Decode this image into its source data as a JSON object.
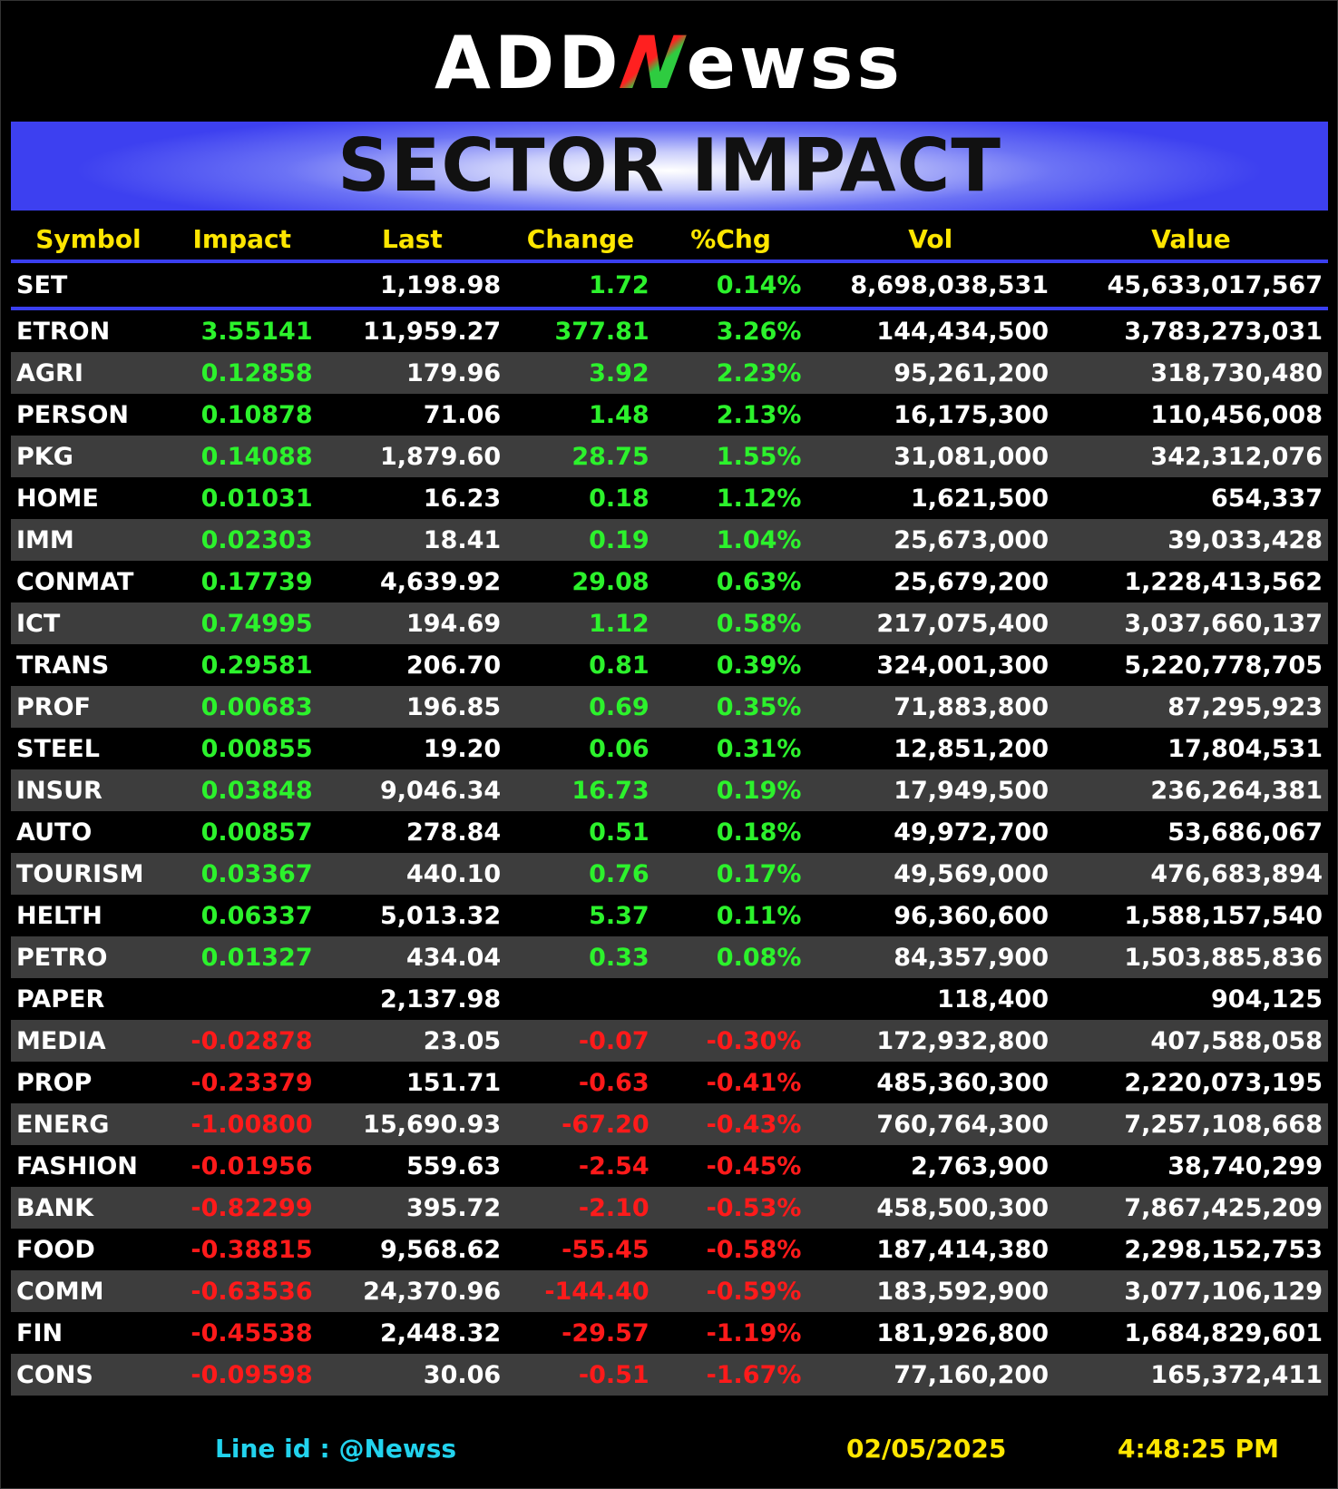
{
  "logo": {
    "part1": "ADD",
    "accent": "N",
    "part2": "ewss"
  },
  "banner": {
    "title": "SECTOR IMPACT"
  },
  "table": {
    "headers": [
      "Symbol",
      "Impact",
      "Last",
      "Change",
      "%Chg",
      "Vol",
      "Value"
    ],
    "market": {
      "symbol": "SET",
      "impact": "",
      "last": "1,198.98",
      "change": "1.72",
      "pct": "0.14%",
      "vol": "8,698,038,531",
      "value": "45,633,017,567",
      "dir": "pos"
    },
    "rows": [
      {
        "symbol": "ETRON",
        "impact": "3.55141",
        "last": "11,959.27",
        "change": "377.81",
        "pct": "3.26%",
        "vol": "144,434,500",
        "value": "3,783,273,031",
        "dir": "pos"
      },
      {
        "symbol": "AGRI",
        "impact": "0.12858",
        "last": "179.96",
        "change": "3.92",
        "pct": "2.23%",
        "vol": "95,261,200",
        "value": "318,730,480",
        "dir": "pos"
      },
      {
        "symbol": "PERSON",
        "impact": "0.10878",
        "last": "71.06",
        "change": "1.48",
        "pct": "2.13%",
        "vol": "16,175,300",
        "value": "110,456,008",
        "dir": "pos"
      },
      {
        "symbol": "PKG",
        "impact": "0.14088",
        "last": "1,879.60",
        "change": "28.75",
        "pct": "1.55%",
        "vol": "31,081,000",
        "value": "342,312,076",
        "dir": "pos"
      },
      {
        "symbol": "HOME",
        "impact": "0.01031",
        "last": "16.23",
        "change": "0.18",
        "pct": "1.12%",
        "vol": "1,621,500",
        "value": "654,337",
        "dir": "pos"
      },
      {
        "symbol": "IMM",
        "impact": "0.02303",
        "last": "18.41",
        "change": "0.19",
        "pct": "1.04%",
        "vol": "25,673,000",
        "value": "39,033,428",
        "dir": "pos"
      },
      {
        "symbol": "CONMAT",
        "impact": "0.17739",
        "last": "4,639.92",
        "change": "29.08",
        "pct": "0.63%",
        "vol": "25,679,200",
        "value": "1,228,413,562",
        "dir": "pos"
      },
      {
        "symbol": "ICT",
        "impact": "0.74995",
        "last": "194.69",
        "change": "1.12",
        "pct": "0.58%",
        "vol": "217,075,400",
        "value": "3,037,660,137",
        "dir": "pos"
      },
      {
        "symbol": "TRANS",
        "impact": "0.29581",
        "last": "206.70",
        "change": "0.81",
        "pct": "0.39%",
        "vol": "324,001,300",
        "value": "5,220,778,705",
        "dir": "pos"
      },
      {
        "symbol": "PROF",
        "impact": "0.00683",
        "last": "196.85",
        "change": "0.69",
        "pct": "0.35%",
        "vol": "71,883,800",
        "value": "87,295,923",
        "dir": "pos"
      },
      {
        "symbol": "STEEL",
        "impact": "0.00855",
        "last": "19.20",
        "change": "0.06",
        "pct": "0.31%",
        "vol": "12,851,200",
        "value": "17,804,531",
        "dir": "pos"
      },
      {
        "symbol": "INSUR",
        "impact": "0.03848",
        "last": "9,046.34",
        "change": "16.73",
        "pct": "0.19%",
        "vol": "17,949,500",
        "value": "236,264,381",
        "dir": "pos"
      },
      {
        "symbol": "AUTO",
        "impact": "0.00857",
        "last": "278.84",
        "change": "0.51",
        "pct": "0.18%",
        "vol": "49,972,700",
        "value": "53,686,067",
        "dir": "pos"
      },
      {
        "symbol": "TOURISM",
        "impact": "0.03367",
        "last": "440.10",
        "change": "0.76",
        "pct": "0.17%",
        "vol": "49,569,000",
        "value": "476,683,894",
        "dir": "pos"
      },
      {
        "symbol": "HELTH",
        "impact": "0.06337",
        "last": "5,013.32",
        "change": "5.37",
        "pct": "0.11%",
        "vol": "96,360,600",
        "value": "1,588,157,540",
        "dir": "pos"
      },
      {
        "symbol": "PETRO",
        "impact": "0.01327",
        "last": "434.04",
        "change": "0.33",
        "pct": "0.08%",
        "vol": "84,357,900",
        "value": "1,503,885,836",
        "dir": "pos"
      },
      {
        "symbol": "PAPER",
        "impact": "",
        "last": "2,137.98",
        "change": "",
        "pct": "",
        "vol": "118,400",
        "value": "904,125",
        "dir": "neu"
      },
      {
        "symbol": "MEDIA",
        "impact": "-0.02878",
        "last": "23.05",
        "change": "-0.07",
        "pct": "-0.30%",
        "vol": "172,932,800",
        "value": "407,588,058",
        "dir": "neg"
      },
      {
        "symbol": "PROP",
        "impact": "-0.23379",
        "last": "151.71",
        "change": "-0.63",
        "pct": "-0.41%",
        "vol": "485,360,300",
        "value": "2,220,073,195",
        "dir": "neg"
      },
      {
        "symbol": "ENERG",
        "impact": "-1.00800",
        "last": "15,690.93",
        "change": "-67.20",
        "pct": "-0.43%",
        "vol": "760,764,300",
        "value": "7,257,108,668",
        "dir": "neg"
      },
      {
        "symbol": "FASHION",
        "impact": "-0.01956",
        "last": "559.63",
        "change": "-2.54",
        "pct": "-0.45%",
        "vol": "2,763,900",
        "value": "38,740,299",
        "dir": "neg"
      },
      {
        "symbol": "BANK",
        "impact": "-0.82299",
        "last": "395.72",
        "change": "-2.10",
        "pct": "-0.53%",
        "vol": "458,500,300",
        "value": "7,867,425,209",
        "dir": "neg"
      },
      {
        "symbol": "FOOD",
        "impact": "-0.38815",
        "last": "9,568.62",
        "change": "-55.45",
        "pct": "-0.58%",
        "vol": "187,414,380",
        "value": "2,298,152,753",
        "dir": "neg"
      },
      {
        "symbol": "COMM",
        "impact": "-0.63536",
        "last": "24,370.96",
        "change": "-144.40",
        "pct": "-0.59%",
        "vol": "183,592,900",
        "value": "3,077,106,129",
        "dir": "neg"
      },
      {
        "symbol": "FIN",
        "impact": "-0.45538",
        "last": "2,448.32",
        "change": "-29.57",
        "pct": "-1.19%",
        "vol": "181,926,800",
        "value": "1,684,829,601",
        "dir": "neg"
      },
      {
        "symbol": "CONS",
        "impact": "-0.09598",
        "last": "30.06",
        "change": "-0.51",
        "pct": "-1.67%",
        "vol": "77,160,200",
        "value": "165,372,411",
        "dir": "neg"
      }
    ]
  },
  "footer": {
    "line_id": "Line id  : @Newss",
    "date": "02/05/2025",
    "time": "4:48:25 PM"
  },
  "colors": {
    "positive": "#2cf22c",
    "negative": "#ff1a1a",
    "header": "#ffe600",
    "accent_blue": "#3a3ff0",
    "line_id": "#22d3ee"
  }
}
